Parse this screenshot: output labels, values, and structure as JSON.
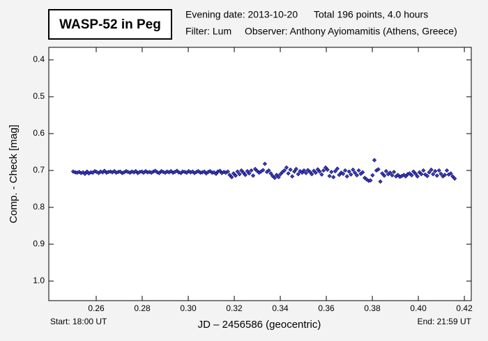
{
  "chart_data": {
    "type": "scatter",
    "title": "WASP-52 in Peg",
    "evening_date": "Evening date: 2013-10-20",
    "total": "Total 196 points, 4.0 hours",
    "filter": "Filter: Lum",
    "observer": "Observer: Anthony Ayiomamitis (Athens, Greece)",
    "x_label": "JD – 2456586  (geocentric)",
    "y_label": "Comp. - Check [mag]",
    "start": "Start: 18:00 UT",
    "end": "End: 21:59 UT",
    "xlim": [
      0.2394,
      0.423
    ],
    "ylim": [
      0.366,
      1.053
    ],
    "y_inverted": true,
    "xticks": [
      0.26,
      0.28,
      {
        "value": 0.3,
        "label": "0.30"
      },
      0.32,
      0.34,
      0.36,
      0.38,
      {
        "value": 0.4,
        "label": "0.40"
      },
      0.42
    ],
    "yticks": [
      0.4,
      0.5,
      0.6,
      0.7,
      0.8,
      0.9,
      {
        "value": 1,
        "label": "1.0"
      }
    ],
    "color": "#3a3ae0",
    "x": [
      0.25,
      0.2509,
      0.2517,
      0.2526,
      0.2534,
      0.2543,
      0.2551,
      0.256,
      0.2568,
      0.2577,
      0.2585,
      0.2594,
      0.2602,
      0.2611,
      0.2619,
      0.2628,
      0.2636,
      0.2645,
      0.2653,
      0.2662,
      0.267,
      0.2679,
      0.2687,
      0.2696,
      0.2704,
      0.2713,
      0.2721,
      0.273,
      0.2738,
      0.2747,
      0.2755,
      0.2764,
      0.2772,
      0.2781,
      0.2789,
      0.2798,
      0.2806,
      0.2815,
      0.2823,
      0.2832,
      0.284,
      0.2849,
      0.2857,
      0.2866,
      0.2874,
      0.2883,
      0.2891,
      0.29,
      0.2908,
      0.2917,
      0.2925,
      0.2934,
      0.2942,
      0.2951,
      0.2959,
      0.2968,
      0.2976,
      0.2985,
      0.2993,
      0.3002,
      0.301,
      0.3019,
      0.3027,
      0.3036,
      0.3044,
      0.3053,
      0.3061,
      0.307,
      0.3078,
      0.3087,
      0.3095,
      0.3104,
      0.3112,
      0.3121,
      0.3129,
      0.3138,
      0.3146,
      0.3155,
      0.3163,
      0.3172,
      0.318,
      0.3189,
      0.3197,
      0.3206,
      0.3214,
      0.3223,
      0.3231,
      0.324,
      0.3248,
      0.3257,
      0.3265,
      0.3274,
      0.3282,
      0.3291,
      0.3299,
      0.3308,
      0.3316,
      0.3325,
      0.3333,
      0.3342,
      0.335,
      0.3359,
      0.3367,
      0.3376,
      0.3384,
      0.3393,
      0.3401,
      0.341,
      0.3418,
      0.3427,
      0.3435,
      0.3444,
      0.3452,
      0.3461,
      0.3469,
      0.3478,
      0.3486,
      0.3495,
      0.3503,
      0.3512,
      0.352,
      0.3529,
      0.3537,
      0.3546,
      0.3554,
      0.3563,
      0.3571,
      0.358,
      0.3588,
      0.3597,
      0.3605,
      0.3614,
      0.3622,
      0.3631,
      0.3639,
      0.3648,
      0.3656,
      0.3665,
      0.3673,
      0.3682,
      0.369,
      0.3699,
      0.3707,
      0.3716,
      0.3724,
      0.3733,
      0.3741,
      0.375,
      0.3758,
      0.3767,
      0.3775,
      0.3784,
      0.3792,
      0.3801,
      0.3809,
      0.3818,
      0.3826,
      0.3835,
      0.3843,
      0.3852,
      0.386,
      0.3869,
      0.3877,
      0.3886,
      0.3894,
      0.3903,
      0.3911,
      0.392,
      0.3928,
      0.3937,
      0.3945,
      0.3954,
      0.3962,
      0.3971,
      0.3979,
      0.3988,
      0.3996,
      0.4005,
      0.4013,
      0.4022,
      0.403,
      0.4039,
      0.4047,
      0.4056,
      0.4064,
      0.4073,
      0.4081,
      0.409,
      0.4098,
      0.4107,
      0.4115,
      0.4124,
      0.4132,
      0.4141,
      0.4149,
      0.4158
    ],
    "values": [
      0.703,
      0.705,
      0.706,
      0.704,
      0.707,
      0.705,
      0.709,
      0.703,
      0.708,
      0.705,
      0.706,
      0.702,
      0.704,
      0.707,
      0.703,
      0.705,
      0.701,
      0.706,
      0.704,
      0.703,
      0.705,
      0.702,
      0.706,
      0.704,
      0.703,
      0.707,
      0.705,
      0.702,
      0.704,
      0.706,
      0.703,
      0.705,
      0.702,
      0.707,
      0.704,
      0.703,
      0.706,
      0.702,
      0.705,
      0.704,
      0.706,
      0.703,
      0.701,
      0.705,
      0.707,
      0.702,
      0.704,
      0.706,
      0.703,
      0.705,
      0.702,
      0.706,
      0.704,
      0.701,
      0.705,
      0.707,
      0.703,
      0.704,
      0.706,
      0.702,
      0.705,
      0.703,
      0.707,
      0.704,
      0.702,
      0.706,
      0.705,
      0.703,
      0.708,
      0.704,
      0.702,
      0.706,
      0.705,
      0.709,
      0.703,
      0.701,
      0.707,
      0.704,
      0.706,
      0.703,
      0.712,
      0.718,
      0.708,
      0.714,
      0.703,
      0.71,
      0.7,
      0.706,
      0.712,
      0.702,
      0.708,
      0.7,
      0.714,
      0.696,
      0.701,
      0.706,
      0.703,
      0.699,
      0.682,
      0.704,
      0.7,
      0.708,
      0.715,
      0.72,
      0.712,
      0.718,
      0.71,
      0.704,
      0.7,
      0.692,
      0.708,
      0.698,
      0.716,
      0.703,
      0.696,
      0.71,
      0.702,
      0.706,
      0.7,
      0.707,
      0.699,
      0.704,
      0.71,
      0.701,
      0.706,
      0.697,
      0.703,
      0.711,
      0.7,
      0.692,
      0.698,
      0.715,
      0.704,
      0.718,
      0.702,
      0.695,
      0.712,
      0.706,
      0.709,
      0.7,
      0.716,
      0.703,
      0.711,
      0.698,
      0.706,
      0.713,
      0.7,
      0.709,
      0.705,
      0.72,
      0.724,
      0.728,
      0.727,
      0.713,
      0.672,
      0.7,
      0.697,
      0.73,
      0.708,
      0.714,
      0.702,
      0.71,
      0.706,
      0.713,
      0.704,
      0.716,
      0.712,
      0.717,
      0.715,
      0.712,
      0.716,
      0.71,
      0.708,
      0.713,
      0.703,
      0.709,
      0.716,
      0.705,
      0.71,
      0.7,
      0.711,
      0.715,
      0.705,
      0.698,
      0.71,
      0.702,
      0.714,
      0.7,
      0.709,
      0.716,
      0.712,
      0.7,
      0.711,
      0.708,
      0.716,
      0.722
    ]
  }
}
